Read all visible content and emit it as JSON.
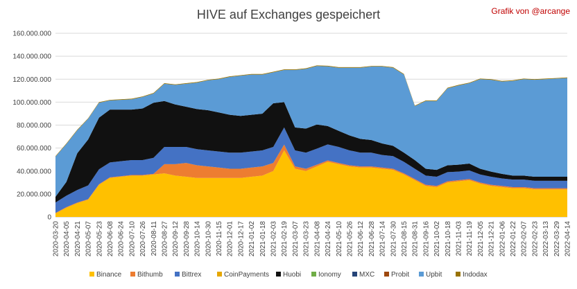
{
  "chart_data": {
    "type": "area",
    "stacked": true,
    "title": "HIVE auf Exchanges gespeichert",
    "credit": "Grafik von @arcange",
    "ylim": [
      0,
      160000000
    ],
    "yticks": [
      "0",
      "20.000.000",
      "40.000.000",
      "60.000.000",
      "80.000.000",
      "100.000.000",
      "120.000.000",
      "140.000.000",
      "160.000.000"
    ],
    "ytick_values": [
      0,
      20000000,
      40000000,
      60000000,
      80000000,
      100000000,
      120000000,
      140000000,
      160000000
    ],
    "grid": "horizontal",
    "legend_position": "bottom",
    "x": [
      "2020-03-20",
      "2020-04-05",
      "2020-04-21",
      "2020-05-07",
      "2020-05-23",
      "2020-06-08",
      "2020-06-24",
      "2020-07-10",
      "2020-07-26",
      "2020-08-11",
      "2020-08-27",
      "2020-09-12",
      "2020-09-28",
      "2020-10-14",
      "2020-10-30",
      "2020-11-15",
      "2020-12-01",
      "2020-12-17",
      "2021-01-02",
      "2021-01-18",
      "2021-02-03",
      "2021-02-19",
      "2021-03-07",
      "2021-03-23",
      "2021-04-08",
      "2021-04-24",
      "2021-05-10",
      "2021-05-26",
      "2021-06-12",
      "2021-06-28",
      "2021-07-14",
      "2021-07-30",
      "2021-08-15",
      "2021-08-31",
      "2021-09-16",
      "2021-10-02",
      "2021-10-18",
      "2021-11-03",
      "2021-11-19",
      "2021-12-05",
      "2021-12-21",
      "2022-01-06",
      "2022-01-22",
      "2022-02-07",
      "2022-02-23",
      "2022-03-13",
      "2022-03-29",
      "2022-04-14"
    ],
    "series": [
      {
        "name": "Binance",
        "color": "#ffc000",
        "values": [
          3000000,
          8000000,
          12000000,
          15000000,
          28000000,
          34000000,
          35000000,
          36000000,
          36000000,
          37000000,
          38000000,
          36000000,
          35000000,
          34000000,
          34000000,
          34000000,
          34000000,
          34000000,
          35000000,
          36000000,
          40000000,
          58000000,
          42000000,
          40000000,
          44000000,
          48000000,
          46000000,
          44000000,
          43000000,
          43000000,
          42000000,
          41000000,
          37000000,
          32000000,
          27000000,
          26000000,
          30000000,
          31000000,
          32000000,
          29000000,
          27000000,
          26000000,
          25000000,
          25000000,
          24000000,
          24000000,
          24000000,
          24000000
        ]
      },
      {
        "name": "Bithumb",
        "color": "#ed7d31",
        "values": [
          500000,
          500000,
          500000,
          500000,
          500000,
          500000,
          500000,
          500000,
          500000,
          500000,
          8000000,
          10000000,
          12000000,
          11000000,
          10000000,
          9000000,
          8000000,
          8000000,
          8000000,
          8000000,
          7000000,
          5000000,
          2000000,
          2000000,
          1500000,
          1200000,
          1000000,
          1000000,
          1000000,
          1000000,
          1000000,
          1000000,
          1000000,
          1000000,
          1000000,
          1000000,
          1000000,
          1000000,
          1000000,
          1000000,
          1000000,
          1000000,
          1000000,
          1000000,
          1000000,
          1000000,
          1000000,
          1000000
        ]
      },
      {
        "name": "Bittrex",
        "color": "#4472c4",
        "values": [
          9000000,
          10000000,
          11000000,
          12000000,
          13000000,
          13000000,
          13000000,
          13000000,
          13000000,
          14000000,
          15000000,
          15000000,
          14000000,
          14000000,
          14000000,
          14000000,
          14000000,
          14000000,
          14000000,
          14000000,
          14000000,
          15000000,
          14000000,
          14000000,
          14000000,
          14000000,
          14000000,
          13000000,
          12000000,
          12000000,
          11000000,
          11000000,
          10000000,
          9000000,
          8000000,
          8000000,
          8000000,
          7500000,
          7500000,
          7000000,
          7000000,
          6500000,
          6500000,
          6500000,
          6500000,
          6500000,
          6500000,
          6500000
        ]
      },
      {
        "name": "CoinPayments",
        "color": "#e6a700",
        "values": [
          0,
          0,
          0,
          0,
          0,
          0,
          0,
          0,
          0,
          0,
          0,
          0,
          0,
          0,
          0,
          0,
          0,
          0,
          0,
          0,
          0,
          0,
          0,
          0,
          0,
          0,
          0,
          0,
          0,
          0,
          0,
          0,
          0,
          0,
          0,
          0,
          0,
          0,
          0,
          0,
          0,
          0,
          0,
          0,
          0,
          0,
          0,
          0
        ]
      },
      {
        "name": "Huobi",
        "color": "#111111",
        "values": [
          5000000,
          12000000,
          32000000,
          40000000,
          45000000,
          46000000,
          45000000,
          44000000,
          45000000,
          48000000,
          40000000,
          37000000,
          35000000,
          35000000,
          35000000,
          34000000,
          33000000,
          32000000,
          32000000,
          32000000,
          38000000,
          22000000,
          20000000,
          21000000,
          21000000,
          16000000,
          14000000,
          13000000,
          12000000,
          11000000,
          10000000,
          9000000,
          8000000,
          7500000,
          6000000,
          6000000,
          6000000,
          6000000,
          6000000,
          5000000,
          4500000,
          4000000,
          3500000,
          3500000,
          3500000,
          3500000,
          3500000,
          3500000
        ]
      },
      {
        "name": "Ionomy",
        "color": "#70ad47",
        "values": [
          0,
          0,
          0,
          0,
          0,
          0,
          0,
          0,
          0,
          0,
          0,
          0,
          0,
          0,
          0,
          0,
          0,
          0,
          0,
          0,
          0,
          0,
          0,
          0,
          0,
          0,
          0,
          0,
          0,
          0,
          0,
          0,
          0,
          0,
          0,
          0,
          0,
          0,
          0,
          0,
          0,
          0,
          0,
          0,
          0,
          0,
          0,
          0
        ]
      },
      {
        "name": "MXC",
        "color": "#264478",
        "values": [
          0,
          0,
          0,
          0,
          0,
          0,
          0,
          0,
          0,
          0,
          0,
          0,
          0,
          0,
          0,
          0,
          0,
          0,
          0,
          0,
          0,
          0,
          0,
          0,
          0,
          0,
          0,
          0,
          0,
          0,
          0,
          0,
          0,
          0,
          0,
          0,
          0,
          0,
          0,
          0,
          0,
          0,
          0,
          0,
          0,
          0,
          0,
          0
        ]
      },
      {
        "name": "Probit",
        "color": "#9e480e",
        "values": [
          0,
          0,
          0,
          0,
          0,
          0,
          0,
          0,
          0,
          0,
          0,
          0,
          0,
          0,
          0,
          0,
          0,
          0,
          0,
          0,
          0,
          0,
          0,
          0,
          0,
          0,
          0,
          0,
          0,
          0,
          0,
          0,
          0,
          0,
          0,
          0,
          0,
          0,
          0,
          0,
          0,
          0,
          0,
          0,
          0,
          0,
          0,
          0
        ]
      },
      {
        "name": "Upbit",
        "color": "#5b9bd5",
        "values": [
          35000000,
          33000000,
          20000000,
          18000000,
          13000000,
          8000000,
          8500000,
          9000000,
          10000000,
          8000000,
          15000000,
          17000000,
          20000000,
          23000000,
          26000000,
          29000000,
          33000000,
          35000000,
          35000000,
          34000000,
          27000000,
          28000000,
          50000000,
          52000000,
          51000000,
          52000000,
          55000000,
          59000000,
          62000000,
          64000000,
          67000000,
          68000000,
          68000000,
          47000000,
          59000000,
          60000000,
          67000000,
          69000000,
          70000000,
          78000000,
          80000000,
          80500000,
          82500000,
          84000000,
          84500000,
          85000000,
          85500000,
          86000000
        ]
      },
      {
        "name": "Indodax",
        "color": "#997300",
        "values": [
          500000,
          500000,
          500000,
          500000,
          500000,
          500000,
          500000,
          500000,
          500000,
          500000,
          500000,
          500000,
          500000,
          500000,
          500000,
          500000,
          500000,
          500000,
          500000,
          500000,
          500000,
          500000,
          500000,
          500000,
          500000,
          500000,
          500000,
          500000,
          500000,
          500000,
          500000,
          500000,
          500000,
          500000,
          500000,
          500000,
          500000,
          500000,
          500000,
          500000,
          500000,
          500000,
          500000,
          500000,
          500000,
          500000,
          500000,
          500000
        ]
      }
    ]
  }
}
